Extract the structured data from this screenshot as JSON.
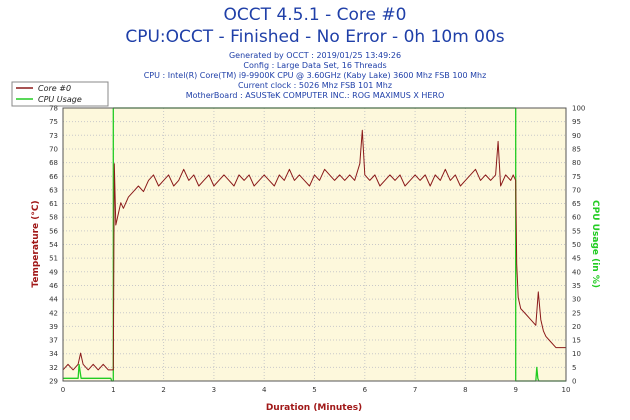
{
  "header": {
    "title_line1": "OCCT 4.5.1 - Core #0",
    "title_line2": "CPU:OCCT - Finished - No Error - 0h 10m 00s",
    "info": [
      "Generated by OCCT : 2019/01/25 13:49:26",
      "Config : Large Data Set, 16 Threads",
      "CPU : Intel(R) Core(TM) i9-9900K CPU @ 3.60GHz (Kaby Lake) 3600 Mhz FSB 100 Mhz",
      "Current clock : 5026 Mhz FSB 101 Mhz",
      "MotherBoard : ASUSTeK COMPUTER INC.: ROG MAXIMUS X HERO"
    ]
  },
  "colors": {
    "title": "#1f3fa8",
    "info": "#1f3fa8",
    "temperature": "#8b1a1a",
    "cpu_usage": "#22cc22",
    "plot_bg": "#fdf8dc",
    "grid": "#c9c9c9",
    "axis_left_label": "#a01818",
    "axis_right_label": "#22cc22",
    "axis_bottom_label": "#a01818"
  },
  "chart_data": {
    "type": "line",
    "title": "OCCT 4.5.1 - Core #0",
    "xlabel": "Duration (Minutes)",
    "ylabel": "Temperature (°C)",
    "y2label": "CPU Usage (in %)",
    "xlim": [
      0,
      10
    ],
    "ylim": [
      29,
      78
    ],
    "y2lim": [
      0,
      100
    ],
    "x_ticks": [
      "0",
      "1",
      "2",
      "3",
      "4",
      "5",
      "6",
      "7",
      "8",
      "9",
      "10"
    ],
    "y_ticks": [
      29,
      32,
      34,
      37,
      39,
      42,
      44,
      46,
      49,
      51,
      54,
      56,
      58,
      61,
      63,
      66,
      68,
      70,
      73,
      75,
      78
    ],
    "y2_ticks": [
      0,
      5,
      10,
      15,
      20,
      25,
      30,
      35,
      40,
      45,
      50,
      55,
      60,
      65,
      70,
      75,
      80,
      85,
      90,
      95,
      100
    ],
    "grid": true,
    "legend_position": "top-left",
    "series": [
      {
        "name": "Core #0",
        "axis": "left",
        "x": [
          0,
          0.1,
          0.2,
          0.3,
          0.35,
          0.4,
          0.5,
          0.6,
          0.7,
          0.8,
          0.9,
          1.0,
          1.02,
          1.05,
          1.1,
          1.15,
          1.2,
          1.3,
          1.4,
          1.5,
          1.6,
          1.7,
          1.8,
          1.9,
          2.0,
          2.1,
          2.2,
          2.3,
          2.4,
          2.5,
          2.6,
          2.7,
          2.8,
          2.9,
          3.0,
          3.1,
          3.2,
          3.3,
          3.4,
          3.5,
          3.6,
          3.7,
          3.8,
          3.9,
          4.0,
          4.1,
          4.2,
          4.3,
          4.4,
          4.5,
          4.6,
          4.7,
          4.8,
          4.9,
          5.0,
          5.1,
          5.2,
          5.3,
          5.4,
          5.5,
          5.6,
          5.7,
          5.8,
          5.9,
          5.95,
          6.0,
          6.1,
          6.2,
          6.3,
          6.4,
          6.5,
          6.6,
          6.7,
          6.8,
          6.9,
          7.0,
          7.1,
          7.2,
          7.3,
          7.4,
          7.5,
          7.6,
          7.7,
          7.8,
          7.9,
          8.0,
          8.1,
          8.2,
          8.3,
          8.4,
          8.5,
          8.6,
          8.65,
          8.7,
          8.8,
          8.9,
          8.95,
          9.0,
          9.02,
          9.05,
          9.1,
          9.2,
          9.3,
          9.4,
          9.45,
          9.5,
          9.55,
          9.6,
          9.7,
          9.8,
          9.9,
          10.0
        ],
        "y": [
          31,
          32,
          31,
          32,
          34,
          32,
          31,
          32,
          31,
          32,
          31,
          31,
          68,
          57,
          59,
          61,
          60,
          62,
          63,
          64,
          63,
          65,
          66,
          64,
          65,
          66,
          64,
          65,
          67,
          65,
          66,
          64,
          65,
          66,
          64,
          65,
          66,
          65,
          64,
          66,
          65,
          66,
          64,
          65,
          66,
          65,
          64,
          66,
          65,
          67,
          65,
          66,
          65,
          64,
          66,
          65,
          67,
          66,
          65,
          66,
          65,
          66,
          65,
          68,
          74,
          66,
          65,
          66,
          64,
          65,
          66,
          65,
          66,
          64,
          65,
          66,
          65,
          66,
          64,
          66,
          65,
          67,
          65,
          66,
          64,
          65,
          66,
          67,
          65,
          66,
          65,
          66,
          72,
          64,
          66,
          65,
          66,
          65,
          50,
          44,
          42,
          41,
          40,
          39,
          45,
          40,
          38,
          37,
          36,
          35,
          35,
          35
        ]
      },
      {
        "name": "CPU Usage",
        "axis": "right",
        "x": [
          0,
          0.3,
          0.32,
          0.36,
          0.4,
          0.95,
          0.97,
          1.0,
          1.0,
          1.01,
          8.95,
          8.98,
          9.0,
          9.0,
          9.02,
          9.4,
          9.42,
          9.44,
          9.46,
          9.5,
          10.0
        ],
        "y": [
          1,
          1,
          6,
          1,
          1,
          1,
          0,
          0,
          100,
          100,
          100,
          100,
          100,
          0,
          0,
          0,
          5,
          1,
          0,
          0,
          0
        ]
      }
    ]
  }
}
